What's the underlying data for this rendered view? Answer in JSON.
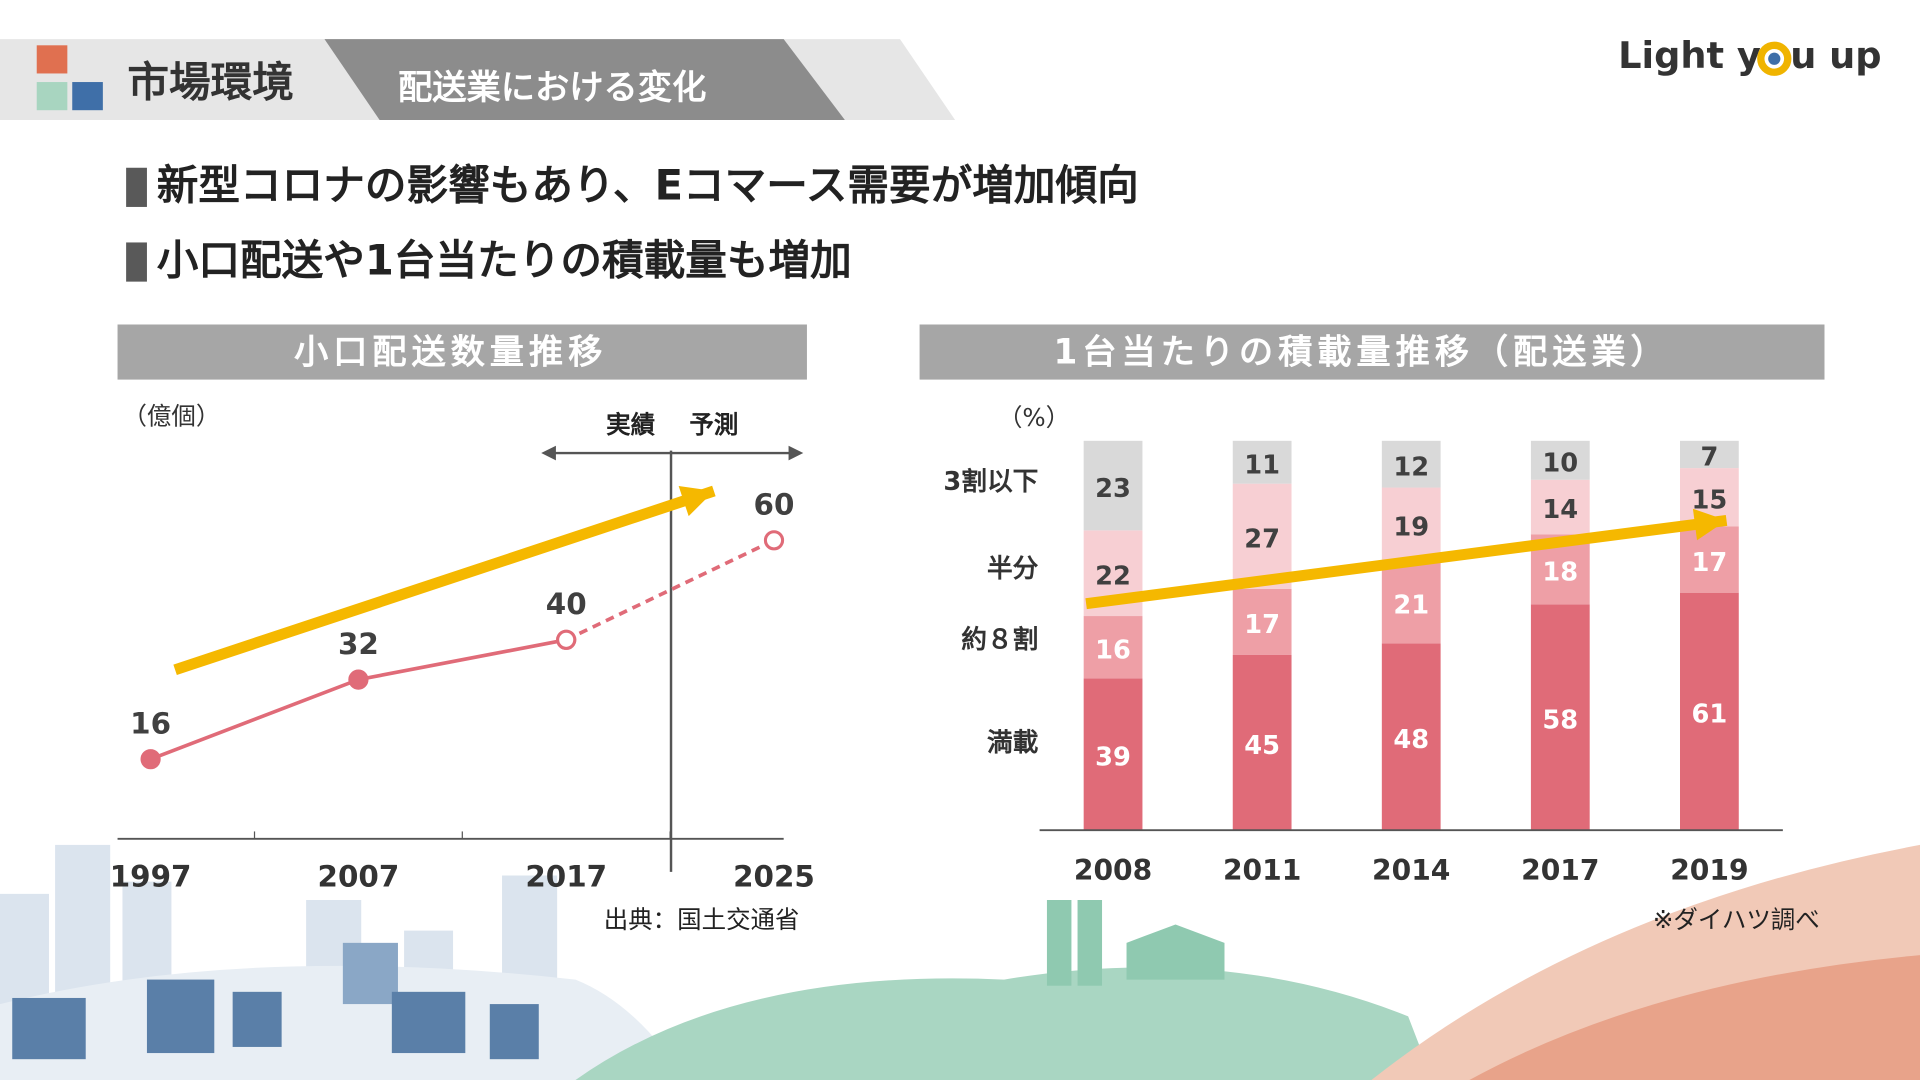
{
  "header": {
    "title": "市場環境",
    "subtitle": "配送業における変化",
    "logo_left": "Light y",
    "logo_right": "u up"
  },
  "bullets": [
    "新型コロナの影響もあり、Eコマース需要が増加傾向",
    "小口配送や1台当たりの積載量も増加"
  ],
  "chart_data": [
    {
      "type": "line",
      "title": "小口配送数量推移",
      "y_label": "（億個）",
      "categories": [
        "1997",
        "2007",
        "2017",
        "2025"
      ],
      "series": [
        {
          "color": "#e06b78",
          "values": [
            16,
            32,
            40,
            null
          ]
        },
        {
          "color": "#e06b78",
          "values": [
            null,
            null,
            40,
            60
          ]
        }
      ],
      "ylim": [
        0,
        80
      ],
      "annotations": [
        "実績",
        "予測"
      ],
      "source": "出典：国土交通省"
    },
    {
      "type": "stacked_bar",
      "title": "1台当たりの積載量推移（配送業）",
      "y_label": "（%）",
      "categories": [
        "2008",
        "2011",
        "2014",
        "2017",
        "2019"
      ],
      "series": [
        {
          "name": "満載",
          "color": "#e06b78",
          "values": [
            39,
            45,
            48,
            58,
            61
          ]
        },
        {
          "name": "約８割",
          "color": "#ee9fa6",
          "values": [
            16,
            17,
            21,
            18,
            17
          ]
        },
        {
          "name": "半分",
          "color": "#f7cfd3",
          "values": [
            22,
            27,
            19,
            14,
            15
          ]
        },
        {
          "name": "3割以下",
          "color": "#d9d9d9",
          "values": [
            23,
            11,
            12,
            10,
            7
          ]
        }
      ],
      "ylim": [
        0,
        100
      ],
      "source": "※ダイハツ調べ"
    }
  ]
}
